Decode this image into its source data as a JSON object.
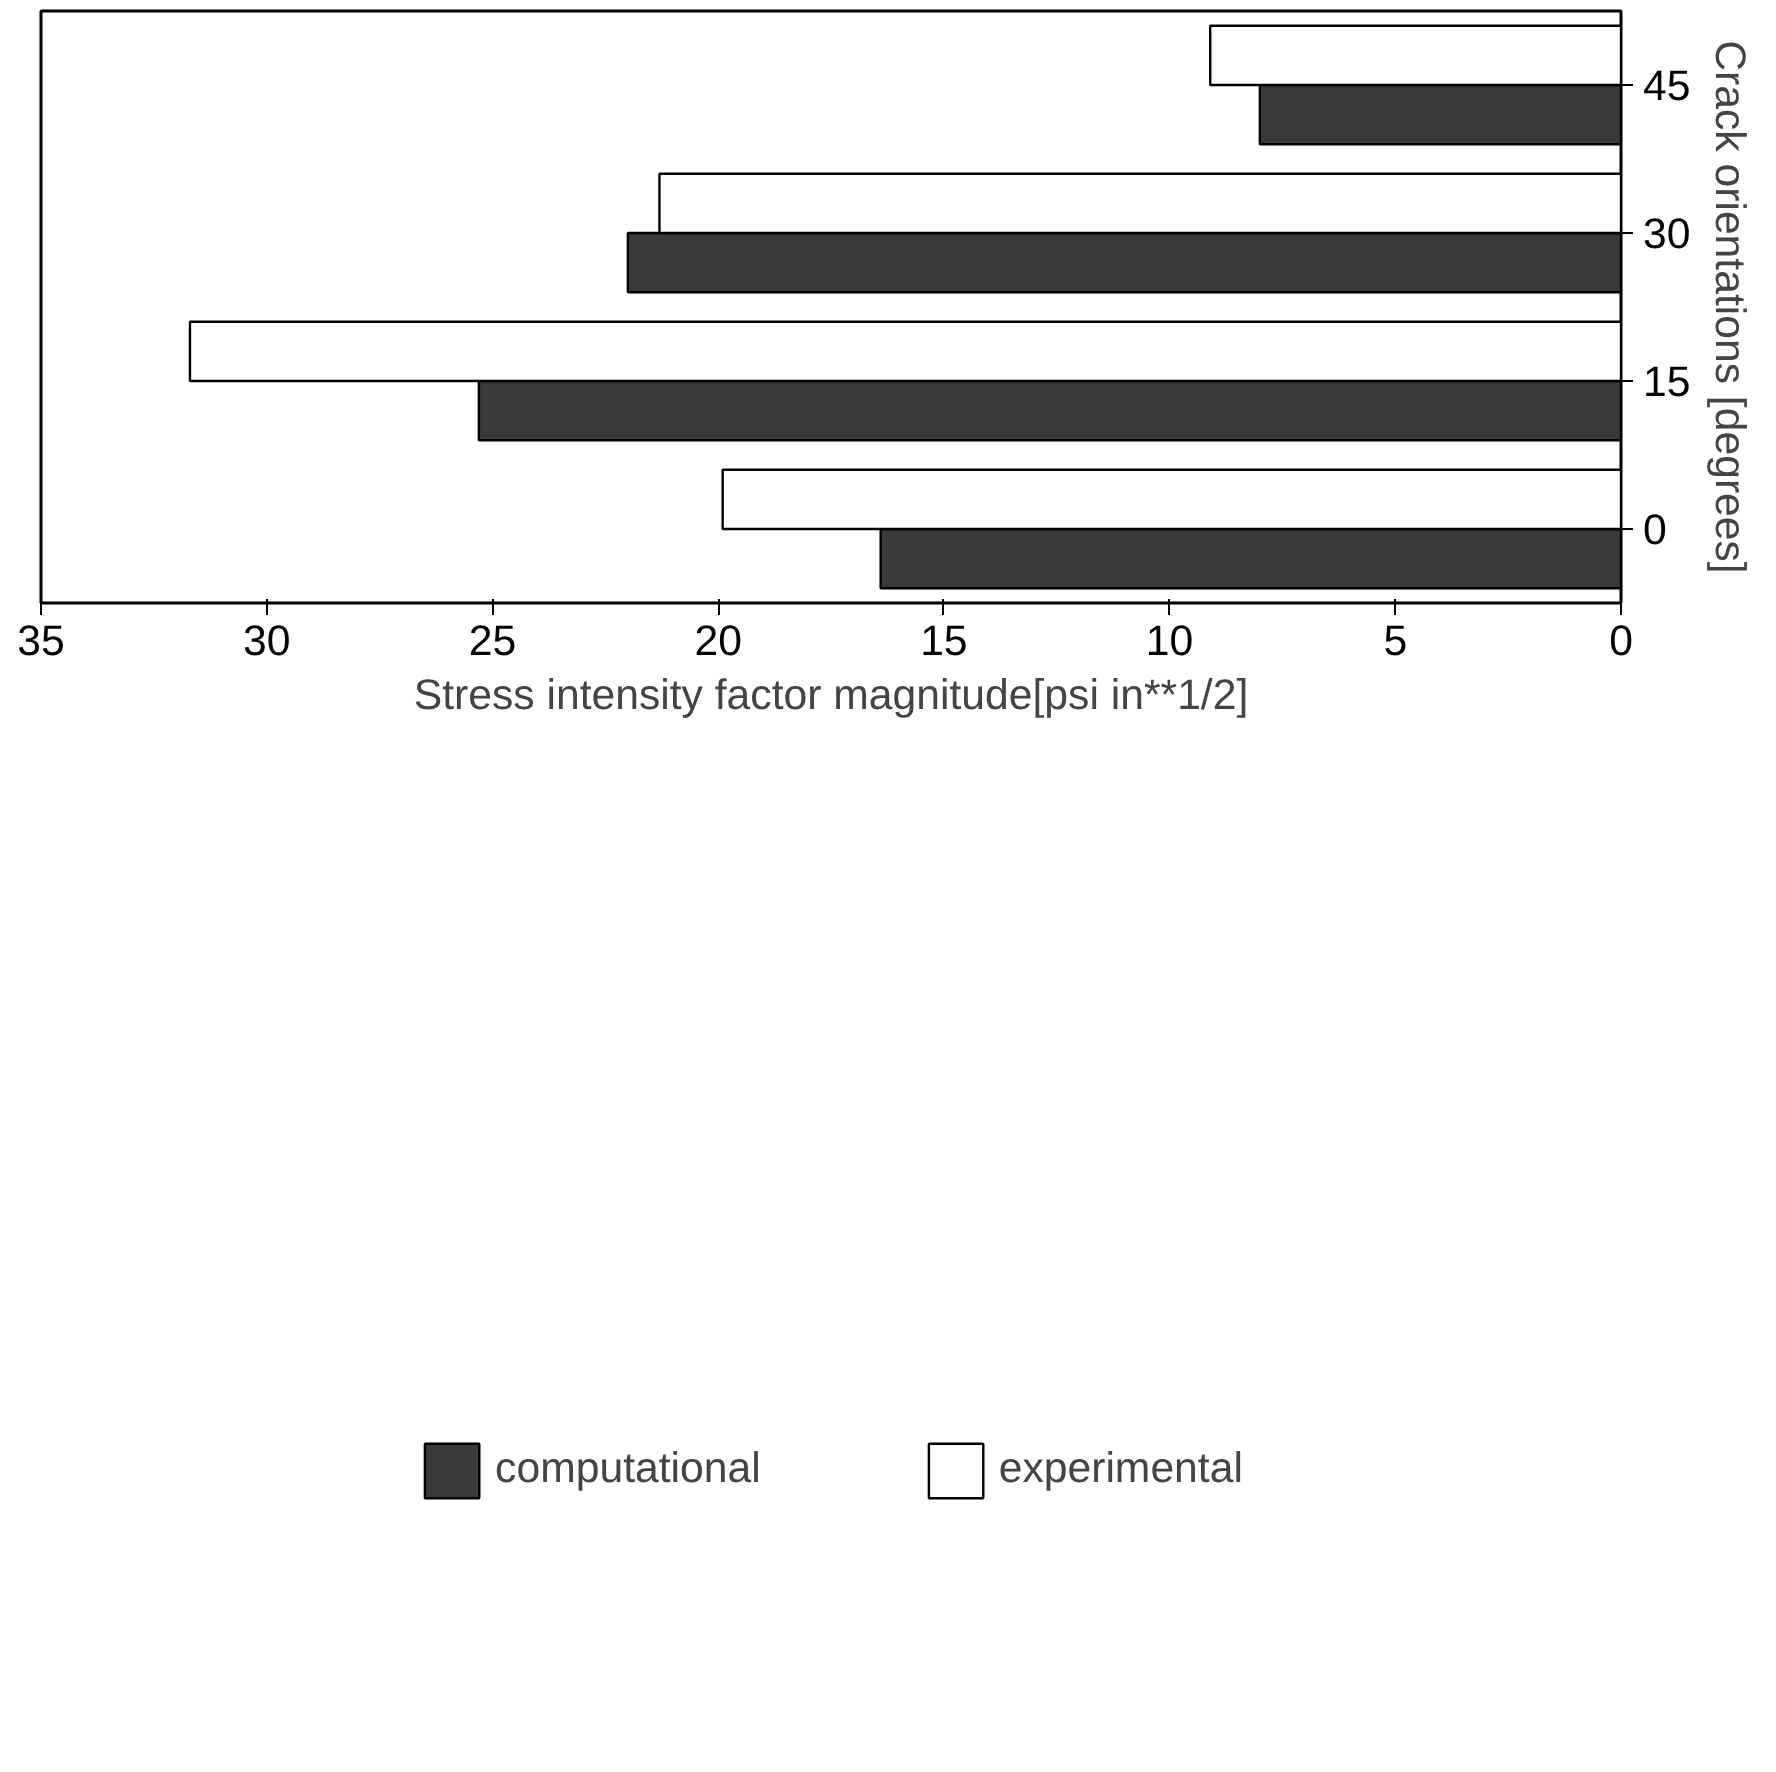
{
  "chart_data": {
    "type": "bar",
    "orientation": "horizontal",
    "xlabel": "Stress intensity factor magnitude[psi in**1/2]",
    "ylabel": "Crack orientations [degrees]",
    "categories": [
      "45",
      "30",
      "15",
      "0"
    ],
    "series": [
      {
        "name": "computational",
        "color": "#3a3a3a",
        "values": [
          8.0,
          22.0,
          25.3,
          16.4
        ]
      },
      {
        "name": "experimental",
        "color": "#ffffff",
        "values": [
          9.1,
          21.3,
          31.7,
          19.9
        ]
      }
    ],
    "xlim": [
      35,
      0
    ],
    "xticks": [
      0,
      5,
      10,
      15,
      20,
      25,
      30,
      35
    ],
    "grid": false,
    "legend": "bottom"
  }
}
